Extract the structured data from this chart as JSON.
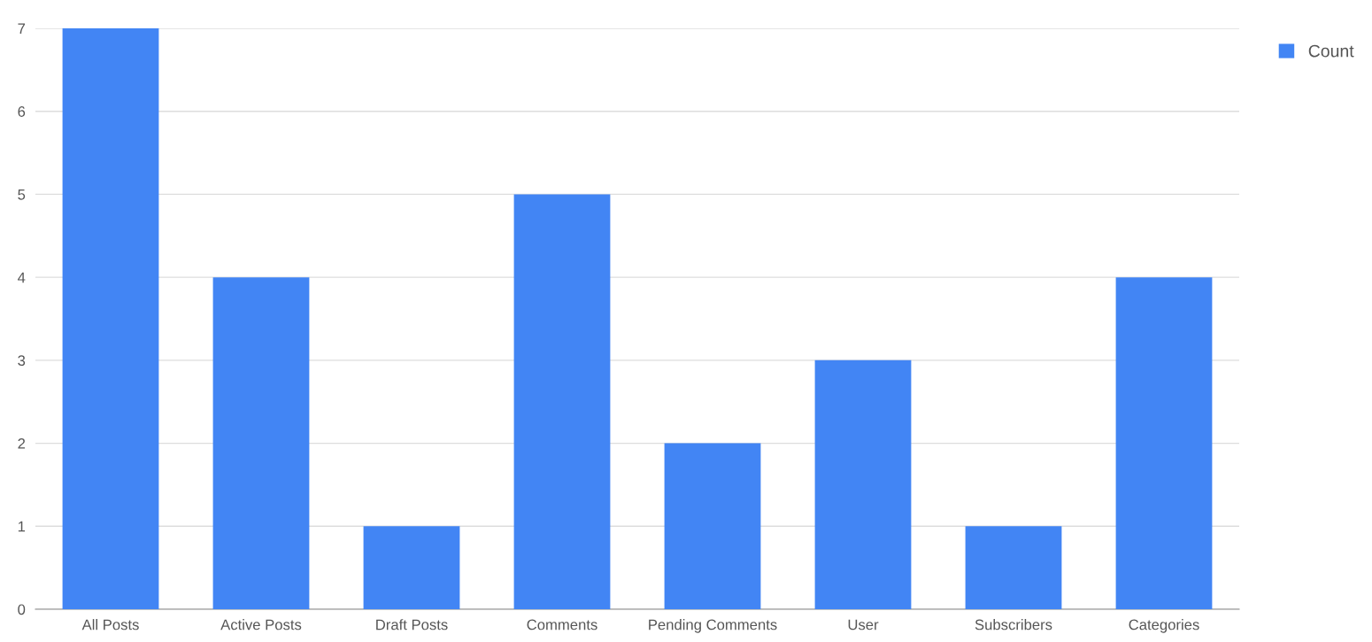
{
  "chart_data": {
    "type": "bar",
    "categories": [
      "All Posts",
      "Active Posts",
      "Draft Posts",
      "Comments",
      "Pending Comments",
      "User",
      "Subscribers",
      "Categories"
    ],
    "series": [
      {
        "name": "Count",
        "color": "#4285f4",
        "values": [
          7,
          4,
          1,
          5,
          2,
          3,
          1,
          4
        ]
      }
    ],
    "ylim": [
      0,
      7
    ],
    "yticks": [
      0,
      1,
      2,
      3,
      4,
      5,
      6,
      7
    ],
    "grid": "y",
    "legend": "top right"
  }
}
